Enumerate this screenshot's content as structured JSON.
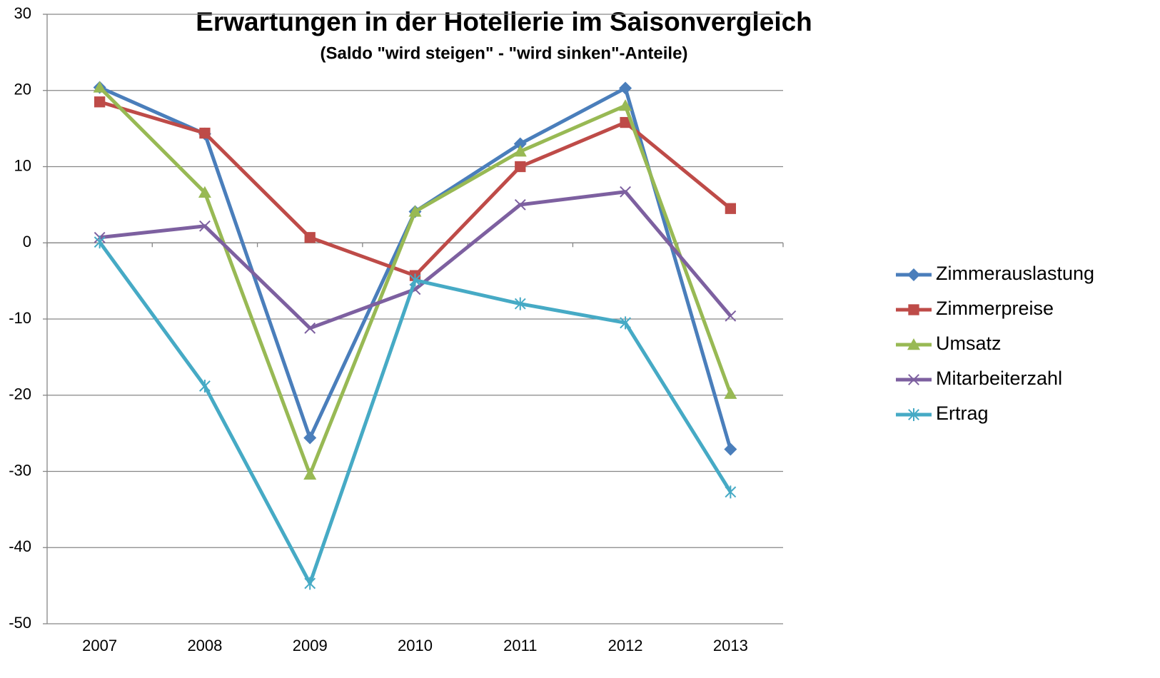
{
  "chart_data": {
    "type": "line",
    "title": "Erwartungen in der Hotellerie im Saisonvergleich",
    "subtitle": "(Saldo \"wird steigen\" - \"wird sinken\"-Anteile)",
    "categories": [
      "2007",
      "2008",
      "2009",
      "2010",
      "2011",
      "2012",
      "2013"
    ],
    "series": [
      {
        "name": "Zimmerauslastung",
        "color": "#4a7ebb",
        "marker": "diamond",
        "values": [
          20.4,
          14.3,
          -25.6,
          4.1,
          13.0,
          20.3,
          -27.1
        ]
      },
      {
        "name": "Zimmerpreise",
        "color": "#be4b48",
        "marker": "square",
        "values": [
          18.5,
          14.4,
          0.7,
          -4.3,
          10.0,
          15.8,
          4.5
        ]
      },
      {
        "name": "Umsatz",
        "color": "#98b954",
        "marker": "triangle",
        "values": [
          20.4,
          6.6,
          -30.4,
          4.1,
          12.0,
          18.0,
          -19.8
        ]
      },
      {
        "name": "Mitarbeiterzahl",
        "color": "#7d60a0",
        "marker": "x",
        "values": [
          0.7,
          2.2,
          -11.2,
          -6.1,
          5.0,
          6.7,
          -9.6
        ]
      },
      {
        "name": "Ertrag",
        "color": "#46aac5",
        "marker": "star",
        "values": [
          0.1,
          -18.8,
          -44.7,
          -4.9,
          -8.0,
          -10.5,
          -32.7
        ]
      }
    ],
    "ylim": [
      -50,
      30
    ],
    "yticks": [
      -50,
      -40,
      -30,
      -20,
      -10,
      0,
      10,
      20,
      30
    ],
    "grid": true,
    "legend": "right"
  }
}
